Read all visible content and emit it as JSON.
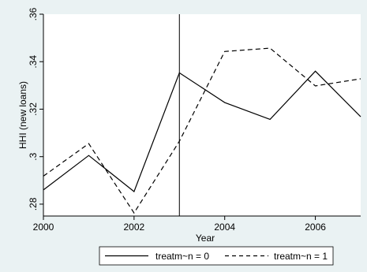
{
  "chart_data": {
    "type": "line",
    "title": "",
    "xlabel": "Year",
    "ylabel": "HHI (new loans)",
    "xlim": [
      2000,
      2007
    ],
    "ylim": [
      0.275,
      0.36
    ],
    "x_ticks": [
      2000,
      2002,
      2004,
      2006
    ],
    "x_tick_labels": [
      "2000",
      "2002",
      "2004",
      "2006"
    ],
    "y_ticks": [
      0.28,
      0.3,
      0.32,
      0.34,
      0.36
    ],
    "y_tick_labels": [
      ".28",
      ".3",
      ".32",
      ".34",
      ".36"
    ],
    "vertical_line_x": 2003,
    "grid": false,
    "legend_position": "bottom",
    "x": [
      2000,
      2001,
      2002,
      2003,
      2004,
      2005,
      2006,
      2007
    ],
    "series": [
      {
        "name": "treatm~n = 0",
        "line_style": "solid",
        "color": "#000000",
        "values": [
          0.286,
          0.3005,
          0.2853,
          0.3353,
          0.3228,
          0.3157,
          0.336,
          0.3168
        ]
      },
      {
        "name": "treatm~n = 1",
        "line_style": "dashed",
        "color": "#000000",
        "values": [
          0.2918,
          0.3055,
          0.2763,
          0.3065,
          0.3443,
          0.3457,
          0.3298,
          0.3328
        ]
      }
    ]
  }
}
